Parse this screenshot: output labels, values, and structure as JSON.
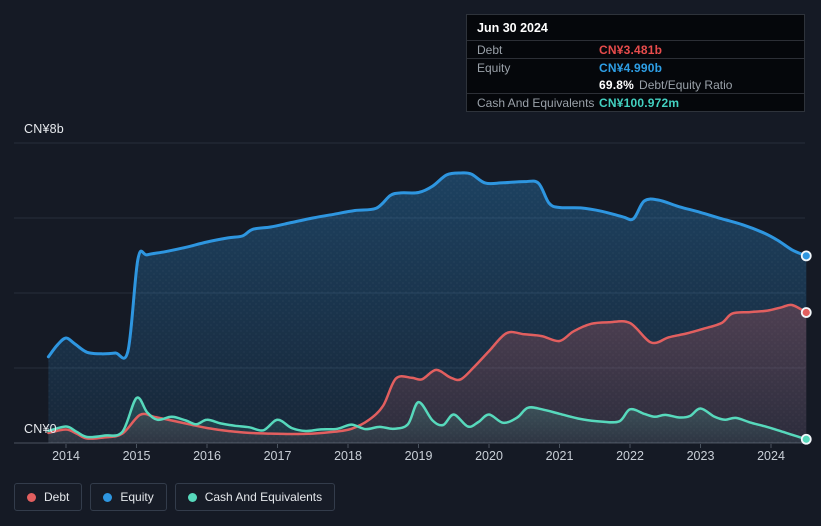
{
  "tooltip": {
    "date": "Jun 30 2024",
    "debt_label": "Debt",
    "debt_value": "CN¥3.481b",
    "equity_label": "Equity",
    "equity_value": "CN¥4.990b",
    "ratio_value": "69.8%",
    "ratio_label": "Debt/Equity Ratio",
    "cash_label": "Cash And Equivalents",
    "cash_value": "CN¥100.972m"
  },
  "axis": {
    "y_top_label": "CN¥8b",
    "y_zero_label": "CN¥0",
    "years": [
      "2014",
      "2015",
      "2016",
      "2017",
      "2018",
      "2019",
      "2020",
      "2021",
      "2022",
      "2023",
      "2024"
    ]
  },
  "legend": [
    {
      "id": "debt",
      "label": "Debt",
      "color": "#e25f5f"
    },
    {
      "id": "equity",
      "label": "Equity",
      "color": "#2e96e0"
    },
    {
      "id": "cash",
      "label": "Cash And Equivalents",
      "color": "#57d9bc"
    }
  ],
  "colors": {
    "background": "#151a25",
    "tooltip_bg": "#05070b",
    "grid": "rgba(141,162,181,0.16)",
    "baseline": "rgba(160,176,192,0.38)",
    "debt_value_text": "#e84c4c",
    "equity_value_text": "#2e9fe6",
    "cash_value_text": "#43d1c1"
  },
  "chart_data": {
    "type": "area",
    "title": "",
    "xlabel": "",
    "ylabel": "CN¥ (billions)",
    "ylim": [
      0,
      8
    ],
    "x_range": [
      2013.75,
      2024.5
    ],
    "y_gridline_values": [
      0,
      2,
      4,
      6,
      8
    ],
    "grid": true,
    "legend_position": "bottom-left",
    "series": [
      {
        "name": "Equity",
        "color": "#2e96e0",
        "stroke_width": 3,
        "fill_opacity_top": 0.32,
        "fill_opacity_bottom": 0.1,
        "end_value_label": "CN¥4.990b",
        "points": [
          [
            2013.75,
            2.3
          ],
          [
            2013.88,
            2.62
          ],
          [
            2014.0,
            2.8
          ],
          [
            2014.12,
            2.65
          ],
          [
            2014.3,
            2.42
          ],
          [
            2014.5,
            2.38
          ],
          [
            2014.7,
            2.4
          ],
          [
            2014.88,
            2.46
          ],
          [
            2015.02,
            4.9
          ],
          [
            2015.15,
            5.02
          ],
          [
            2015.4,
            5.1
          ],
          [
            2015.7,
            5.22
          ],
          [
            2016.0,
            5.36
          ],
          [
            2016.3,
            5.47
          ],
          [
            2016.5,
            5.52
          ],
          [
            2016.65,
            5.7
          ],
          [
            2016.9,
            5.76
          ],
          [
            2017.2,
            5.88
          ],
          [
            2017.5,
            6.0
          ],
          [
            2017.8,
            6.1
          ],
          [
            2018.1,
            6.2
          ],
          [
            2018.4,
            6.26
          ],
          [
            2018.6,
            6.6
          ],
          [
            2018.75,
            6.67
          ],
          [
            2019.0,
            6.68
          ],
          [
            2019.2,
            6.85
          ],
          [
            2019.4,
            7.15
          ],
          [
            2019.6,
            7.2
          ],
          [
            2019.75,
            7.17
          ],
          [
            2019.95,
            6.93
          ],
          [
            2020.2,
            6.94
          ],
          [
            2020.5,
            6.97
          ],
          [
            2020.7,
            6.93
          ],
          [
            2020.85,
            6.4
          ],
          [
            2021.0,
            6.28
          ],
          [
            2021.3,
            6.27
          ],
          [
            2021.6,
            6.18
          ],
          [
            2021.9,
            6.03
          ],
          [
            2022.05,
            5.98
          ],
          [
            2022.2,
            6.45
          ],
          [
            2022.4,
            6.48
          ],
          [
            2022.7,
            6.3
          ],
          [
            2023.0,
            6.15
          ],
          [
            2023.3,
            5.98
          ],
          [
            2023.6,
            5.82
          ],
          [
            2023.9,
            5.6
          ],
          [
            2024.1,
            5.4
          ],
          [
            2024.3,
            5.15
          ],
          [
            2024.5,
            4.99
          ]
        ]
      },
      {
        "name": "Debt",
        "color": "#e25f5f",
        "stroke_width": 2.5,
        "fill_opacity_top": 0.26,
        "fill_opacity_bottom": 0.1,
        "end_value_label": "CN¥3.481b",
        "points": [
          [
            2013.75,
            0.27
          ],
          [
            2014.0,
            0.36
          ],
          [
            2014.15,
            0.25
          ],
          [
            2014.3,
            0.12
          ],
          [
            2014.55,
            0.15
          ],
          [
            2014.8,
            0.25
          ],
          [
            2015.05,
            0.75
          ],
          [
            2015.25,
            0.7
          ],
          [
            2015.5,
            0.6
          ],
          [
            2015.75,
            0.5
          ],
          [
            2016.0,
            0.4
          ],
          [
            2016.3,
            0.32
          ],
          [
            2016.6,
            0.27
          ],
          [
            2016.9,
            0.25
          ],
          [
            2017.2,
            0.24
          ],
          [
            2017.5,
            0.25
          ],
          [
            2017.8,
            0.3
          ],
          [
            2018.05,
            0.38
          ],
          [
            2018.3,
            0.62
          ],
          [
            2018.5,
            1.0
          ],
          [
            2018.68,
            1.72
          ],
          [
            2018.9,
            1.74
          ],
          [
            2019.05,
            1.7
          ],
          [
            2019.25,
            1.95
          ],
          [
            2019.45,
            1.75
          ],
          [
            2019.6,
            1.7
          ],
          [
            2019.8,
            2.05
          ],
          [
            2020.0,
            2.45
          ],
          [
            2020.25,
            2.93
          ],
          [
            2020.5,
            2.9
          ],
          [
            2020.75,
            2.85
          ],
          [
            2021.0,
            2.72
          ],
          [
            2021.2,
            2.98
          ],
          [
            2021.45,
            3.18
          ],
          [
            2021.7,
            3.22
          ],
          [
            2022.0,
            3.2
          ],
          [
            2022.3,
            2.68
          ],
          [
            2022.55,
            2.82
          ],
          [
            2022.8,
            2.92
          ],
          [
            2023.05,
            3.05
          ],
          [
            2023.3,
            3.2
          ],
          [
            2023.45,
            3.45
          ],
          [
            2023.7,
            3.49
          ],
          [
            2023.95,
            3.53
          ],
          [
            2024.15,
            3.62
          ],
          [
            2024.3,
            3.68
          ],
          [
            2024.5,
            3.48
          ]
        ]
      },
      {
        "name": "Cash And Equivalents",
        "color": "#57d9bc",
        "stroke_width": 2.5,
        "fill_opacity_top": 0.22,
        "fill_opacity_bottom": 0.05,
        "end_value_label": "CN¥100.972m",
        "points": [
          [
            2013.75,
            0.32
          ],
          [
            2014.0,
            0.44
          ],
          [
            2014.15,
            0.3
          ],
          [
            2014.3,
            0.16
          ],
          [
            2014.55,
            0.2
          ],
          [
            2014.8,
            0.3
          ],
          [
            2015.0,
            1.2
          ],
          [
            2015.15,
            0.82
          ],
          [
            2015.3,
            0.62
          ],
          [
            2015.5,
            0.7
          ],
          [
            2015.7,
            0.6
          ],
          [
            2015.85,
            0.5
          ],
          [
            2016.0,
            0.62
          ],
          [
            2016.2,
            0.52
          ],
          [
            2016.4,
            0.46
          ],
          [
            2016.6,
            0.42
          ],
          [
            2016.8,
            0.34
          ],
          [
            2017.0,
            0.62
          ],
          [
            2017.2,
            0.4
          ],
          [
            2017.4,
            0.32
          ],
          [
            2017.6,
            0.36
          ],
          [
            2017.85,
            0.38
          ],
          [
            2018.05,
            0.49
          ],
          [
            2018.25,
            0.37
          ],
          [
            2018.45,
            0.43
          ],
          [
            2018.65,
            0.38
          ],
          [
            2018.85,
            0.5
          ],
          [
            2019.0,
            1.09
          ],
          [
            2019.2,
            0.6
          ],
          [
            2019.35,
            0.48
          ],
          [
            2019.5,
            0.76
          ],
          [
            2019.7,
            0.44
          ],
          [
            2019.85,
            0.56
          ],
          [
            2020.0,
            0.76
          ],
          [
            2020.2,
            0.54
          ],
          [
            2020.4,
            0.68
          ],
          [
            2020.55,
            0.94
          ],
          [
            2020.75,
            0.9
          ],
          [
            2021.0,
            0.78
          ],
          [
            2021.3,
            0.64
          ],
          [
            2021.6,
            0.57
          ],
          [
            2021.85,
            0.58
          ],
          [
            2022.0,
            0.9
          ],
          [
            2022.2,
            0.78
          ],
          [
            2022.35,
            0.7
          ],
          [
            2022.5,
            0.75
          ],
          [
            2022.7,
            0.68
          ],
          [
            2022.85,
            0.72
          ],
          [
            2023.0,
            0.92
          ],
          [
            2023.2,
            0.7
          ],
          [
            2023.35,
            0.62
          ],
          [
            2023.5,
            0.67
          ],
          [
            2023.7,
            0.55
          ],
          [
            2023.9,
            0.45
          ],
          [
            2024.1,
            0.34
          ],
          [
            2024.3,
            0.22
          ],
          [
            2024.5,
            0.1
          ]
        ]
      }
    ]
  }
}
